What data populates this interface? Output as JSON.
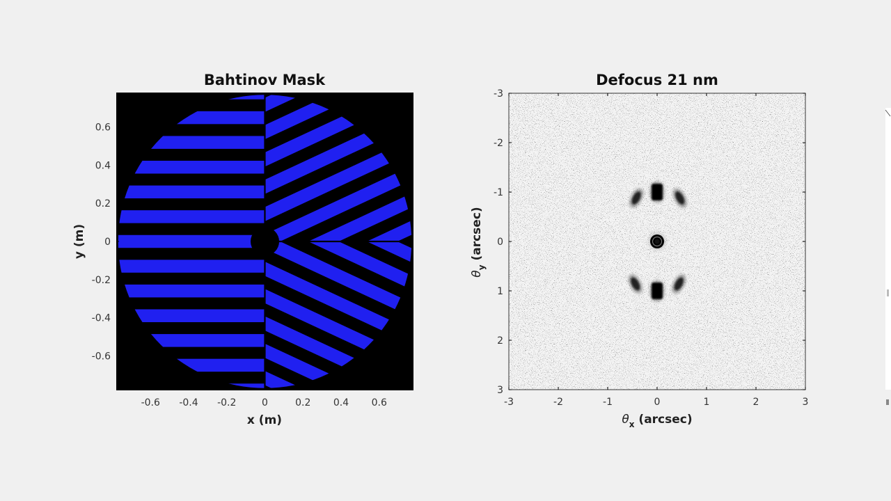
{
  "chart_data": [
    {
      "type": "heatmap",
      "title": "Bahtinov Mask",
      "xlabel": "x (m)",
      "ylabel": "y (m)",
      "xlim": [
        -0.78,
        0.78
      ],
      "ylim": [
        -0.78,
        0.78
      ],
      "x_ticks": [
        "-0.6",
        "-0.4",
        "-0.2",
        "0",
        "0.2",
        "0.4",
        "0.6"
      ],
      "y_ticks": [
        "0.6",
        "0.4",
        "0.2",
        "0",
        "-0.2",
        "-0.4",
        "-0.6"
      ],
      "colors": {
        "slat": "#2020f0",
        "background": "#000000"
      },
      "mask": {
        "outer_radius": 0.77,
        "central_obstruction_radius": 0.075,
        "bar_pitch": 0.13,
        "left_half_angle_deg": 0,
        "right_upper_angle_deg": 25,
        "right_lower_angle_deg": -25
      }
    },
    {
      "type": "heatmap",
      "title": "Defocus 21 nm",
      "xlabel_main": "θ",
      "xlabel_sub": "x",
      "xlabel_unit": " (arcsec)",
      "ylabel_main": "θ",
      "ylabel_sub": "y",
      "ylabel_unit": " (arcsec)",
      "xlim": [
        -3,
        3
      ],
      "ylim": [
        -3,
        3
      ],
      "y_axis_reversed": true,
      "x_ticks": [
        "-3",
        "-2",
        "-1",
        "0",
        "1",
        "2",
        "3"
      ],
      "y_ticks": [
        "-3",
        "-2",
        "-1",
        "0",
        "1",
        "2",
        "3"
      ],
      "colormap": "gray reversed",
      "spots": [
        {
          "x": 0,
          "y": 0,
          "label": "central-peak"
        },
        {
          "x": 0,
          "y": -1,
          "label": "top-center"
        },
        {
          "x": -0.42,
          "y": -0.88,
          "label": "top-left"
        },
        {
          "x": 0.46,
          "y": -0.88,
          "label": "top-right"
        },
        {
          "x": 0,
          "y": 1,
          "label": "bottom-center"
        },
        {
          "x": -0.44,
          "y": 0.86,
          "label": "bottom-left"
        },
        {
          "x": 0.44,
          "y": 0.86,
          "label": "bottom-right"
        }
      ]
    }
  ]
}
